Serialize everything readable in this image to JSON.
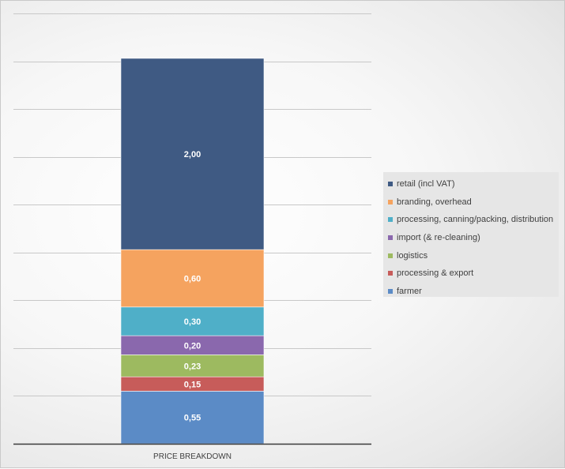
{
  "chart_data": {
    "type": "bar",
    "stacked": true,
    "categories": [
      "PRICE BREAKDOWN"
    ],
    "series": [
      {
        "name": "farmer",
        "values": [
          0.55
        ],
        "label": "0,55",
        "color": "#5b8bc6"
      },
      {
        "name": "processing & export",
        "values": [
          0.15
        ],
        "label": "0,15",
        "color": "#c75c5a"
      },
      {
        "name": "logistics",
        "values": [
          0.23
        ],
        "label": "0,23",
        "color": "#9dba60"
      },
      {
        "name": "import (& re-cleaning)",
        "values": [
          0.2
        ],
        "label": "0,20",
        "color": "#8a68ad"
      },
      {
        "name": "processing, canning/packing, distribution",
        "values": [
          0.3
        ],
        "label": "0,30",
        "color": "#4fafc8"
      },
      {
        "name": "branding, overhead",
        "values": [
          0.6
        ],
        "label": "0,60",
        "color": "#f5a35f"
      },
      {
        "name": "retail (incl VAT)",
        "values": [
          2.0
        ],
        "label": "2,00",
        "color": "#3f5a83"
      }
    ],
    "ylim": [
      0,
      4.5
    ],
    "gridline_step": 0.5,
    "grid": true,
    "legend_position": "right",
    "legend_order": [
      "retail (incl VAT)",
      "branding, overhead",
      "processing, canning/packing, distribution",
      "import (& re-cleaning)",
      "logistics",
      "processing & export",
      "farmer"
    ],
    "title": "",
    "xlabel": "",
    "ylabel": ""
  },
  "colors": {
    "gridline": "#c8c8c8",
    "axis": "#3a3a3a"
  }
}
